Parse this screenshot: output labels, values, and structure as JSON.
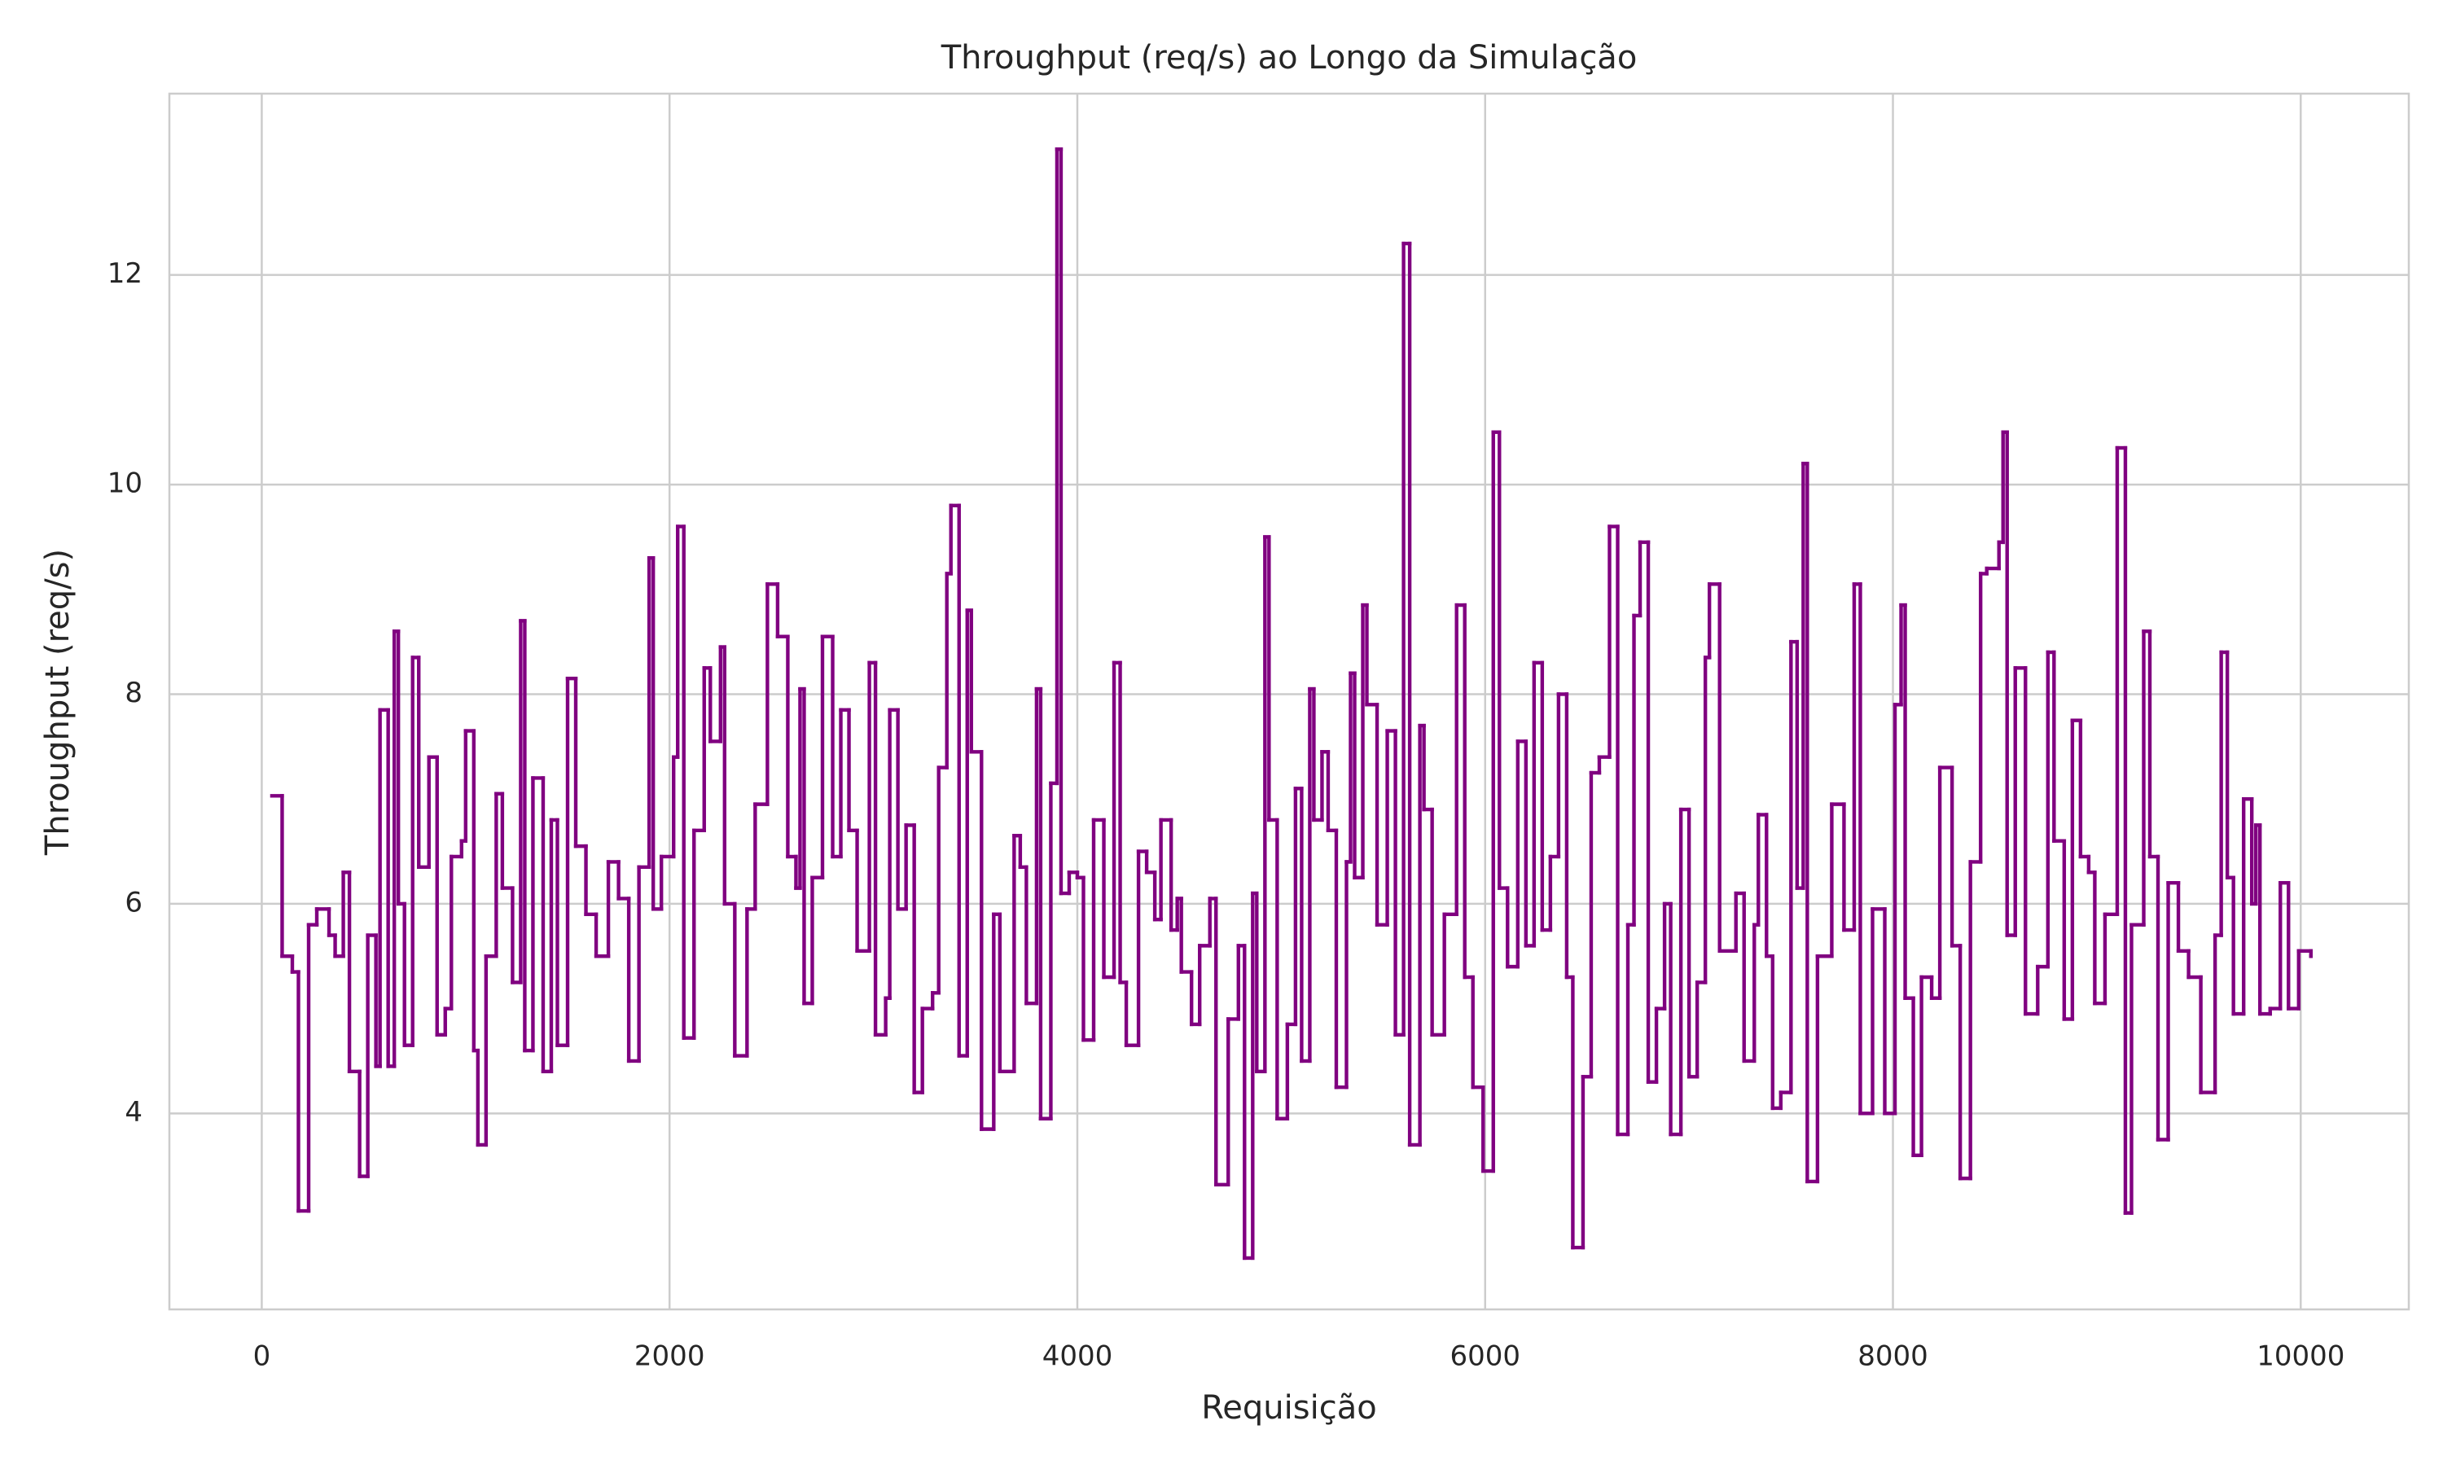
{
  "chart_data": {
    "type": "line",
    "drawstyle": "steps-post",
    "title": "Throughput (req/s) ao Longo da Simulação",
    "x_label": "Requisição",
    "y_label": "Throughput (req/s)",
    "xlim": [
      -453,
      10530
    ],
    "ylim": [
      2.13,
      13.73
    ],
    "xticks": [
      0,
      2000,
      4000,
      6000,
      8000,
      10000
    ],
    "yticks": [
      4,
      6,
      8,
      10,
      12
    ],
    "grid": true,
    "series": [
      {
        "color": "#800080",
        "x": [
          50,
          100,
          150,
          180,
          230,
          270,
          330,
          360,
          400,
          430,
          480,
          520,
          560,
          580,
          620,
          650,
          670,
          700,
          740,
          770,
          820,
          860,
          900,
          930,
          980,
          1000,
          1040,
          1060,
          1100,
          1150,
          1180,
          1230,
          1270,
          1290,
          1330,
          1380,
          1420,
          1450,
          1500,
          1540,
          1590,
          1640,
          1700,
          1750,
          1800,
          1850,
          1900,
          1920,
          1960,
          2020,
          2040,
          2070,
          2120,
          2170,
          2200,
          2250,
          2270,
          2320,
          2380,
          2420,
          2480,
          2530,
          2580,
          2620,
          2640,
          2660,
          2700,
          2750,
          2800,
          2840,
          2880,
          2920,
          2980,
          3010,
          3060,
          3080,
          3120,
          3160,
          3200,
          3240,
          3290,
          3320,
          3360,
          3380,
          3420,
          3460,
          3480,
          3530,
          3590,
          3620,
          3690,
          3720,
          3750,
          3800,
          3820,
          3870,
          3900,
          3920,
          3960,
          4000,
          4030,
          4080,
          4130,
          4180,
          4210,
          4240,
          4300,
          4340,
          4380,
          4410,
          4460,
          4490,
          4510,
          4560,
          4600,
          4650,
          4680,
          4740,
          4790,
          4820,
          4860,
          4880,
          4920,
          4940,
          4980,
          5030,
          5070,
          5100,
          5140,
          5160,
          5200,
          5230,
          5270,
          5320,
          5340,
          5360,
          5400,
          5420,
          5470,
          5520,
          5560,
          5600,
          5630,
          5680,
          5700,
          5740,
          5800,
          5860,
          5900,
          5940,
          5990,
          6040,
          6070,
          6110,
          6160,
          6200,
          6240,
          6280,
          6320,
          6360,
          6400,
          6430,
          6480,
          6520,
          6560,
          6610,
          6650,
          6700,
          6730,
          6760,
          6800,
          6840,
          6880,
          6910,
          6960,
          7000,
          7040,
          7080,
          7100,
          7150,
          7230,
          7270,
          7320,
          7340,
          7380,
          7410,
          7450,
          7500,
          7530,
          7560,
          7580,
          7630,
          7700,
          7760,
          7810,
          7840,
          7900,
          7960,
          8010,
          8040,
          8060,
          8100,
          8140,
          8190,
          8230,
          8290,
          8330,
          8380,
          8430,
          8460,
          8520,
          8540,
          8560,
          8600,
          8650,
          8710,
          8760,
          8790,
          8840,
          8880,
          8920,
          8960,
          8990,
          9040,
          9100,
          9140,
          9170,
          9230,
          9260,
          9300,
          9350,
          9400,
          9450,
          9510,
          9580,
          9610,
          9640,
          9670,
          9720,
          9760,
          9780,
          9800,
          9850,
          9900,
          9940,
          9990,
          10050
        ],
        "values": [
          7.03,
          5.5,
          5.35,
          3.07,
          5.8,
          5.95,
          5.7,
          5.5,
          6.3,
          4.4,
          3.4,
          5.7,
          4.45,
          7.85,
          4.45,
          8.6,
          6.0,
          4.65,
          8.35,
          6.35,
          7.4,
          4.75,
          5.0,
          6.45,
          6.6,
          7.65,
          4.6,
          3.7,
          5.5,
          7.05,
          6.15,
          5.25,
          8.7,
          4.6,
          7.2,
          4.4,
          6.8,
          4.65,
          8.15,
          6.55,
          5.9,
          5.5,
          6.4,
          6.05,
          4.5,
          6.35,
          9.3,
          5.95,
          6.45,
          7.4,
          9.6,
          4.72,
          6.7,
          8.25,
          7.55,
          8.45,
          6.0,
          4.55,
          5.95,
          6.95,
          9.05,
          8.55,
          6.45,
          6.15,
          8.05,
          5.05,
          6.25,
          8.55,
          6.45,
          7.85,
          6.7,
          5.55,
          8.3,
          4.75,
          5.1,
          7.85,
          5.95,
          6.75,
          4.2,
          5.0,
          5.15,
          7.3,
          9.15,
          9.8,
          4.55,
          8.8,
          7.45,
          3.85,
          5.9,
          4.4,
          6.65,
          6.35,
          5.05,
          8.05,
          3.95,
          7.15,
          13.2,
          6.1,
          6.3,
          6.25,
          4.7,
          6.8,
          5.3,
          8.3,
          5.25,
          4.65,
          6.5,
          6.3,
          5.85,
          6.8,
          5.75,
          6.05,
          5.35,
          4.85,
          5.6,
          6.05,
          3.32,
          4.9,
          5.6,
          2.62,
          6.1,
          4.4,
          9.5,
          6.8,
          3.95,
          4.85,
          7.1,
          4.5,
          8.05,
          6.8,
          7.45,
          6.7,
          4.25,
          6.4,
          8.2,
          6.25,
          8.85,
          7.9,
          5.8,
          7.65,
          4.75,
          12.3,
          3.7,
          7.7,
          6.9,
          4.75,
          5.9,
          8.85,
          5.3,
          4.25,
          3.45,
          10.5,
          6.15,
          5.4,
          7.55,
          5.6,
          8.3,
          5.75,
          6.45,
          8.0,
          5.3,
          2.72,
          4.35,
          7.25,
          7.4,
          9.6,
          3.8,
          5.8,
          8.75,
          9.45,
          4.3,
          5.0,
          6.0,
          3.8,
          6.9,
          4.35,
          5.25,
          8.35,
          9.05,
          5.55,
          6.1,
          4.5,
          5.8,
          6.85,
          5.5,
          4.05,
          4.2,
          8.5,
          6.15,
          10.2,
          3.35,
          5.5,
          6.95,
          5.75,
          9.05,
          4.0,
          5.95,
          4.0,
          7.9,
          8.85,
          5.1,
          3.6,
          5.3,
          5.1,
          7.3,
          5.6,
          3.38,
          6.4,
          9.15,
          9.2,
          9.45,
          10.5,
          5.7,
          8.25,
          4.95,
          5.4,
          8.4,
          6.6,
          4.9,
          7.75,
          6.45,
          6.3,
          5.05,
          5.9,
          10.35,
          3.05,
          5.8,
          8.6,
          6.45,
          3.75,
          6.2,
          5.55,
          5.3,
          4.2,
          5.7,
          8.4,
          6.25,
          4.95,
          7.0,
          6.0,
          6.75,
          4.95,
          5.0,
          6.2,
          5.0,
          5.55,
          5.5
        ]
      }
    ]
  }
}
